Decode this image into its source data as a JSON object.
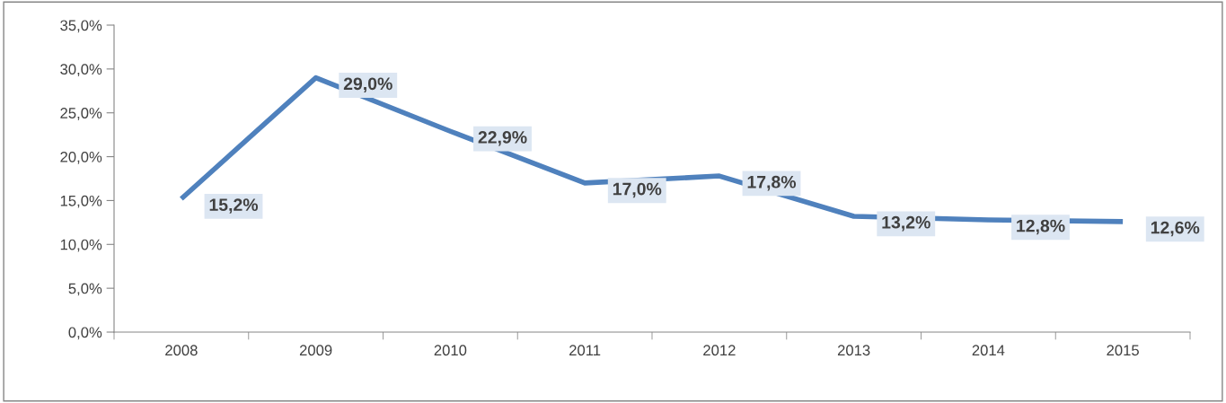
{
  "chart_data": {
    "type": "line",
    "categories": [
      "2008",
      "2009",
      "2010",
      "2011",
      "2012",
      "2013",
      "2014",
      "2015"
    ],
    "series": [
      {
        "color": "#4f81bd",
        "values": [
          15.2,
          29.0,
          22.9,
          17.0,
          17.8,
          13.2,
          12.8,
          12.6
        ],
        "value_labels": [
          "15,2%",
          "29,0%",
          "22,9%",
          "17,0%",
          "17,8%",
          "13,2%",
          "12,8%",
          "12,6%"
        ]
      }
    ],
    "ylim": [
      0,
      35
    ],
    "yticks": [
      {
        "value": 0,
        "label": "0,0%"
      },
      {
        "value": 5,
        "label": "5,0%"
      },
      {
        "value": 10,
        "label": "10,0%"
      },
      {
        "value": 15,
        "label": "15,0%"
      },
      {
        "value": 20,
        "label": "20,0%"
      },
      {
        "value": 25,
        "label": "25,0%"
      },
      {
        "value": 30,
        "label": "30,0%"
      },
      {
        "value": 35,
        "label": "35,0%"
      }
    ],
    "grid": false,
    "legend": false,
    "marker": "none",
    "line_style": "solid"
  }
}
